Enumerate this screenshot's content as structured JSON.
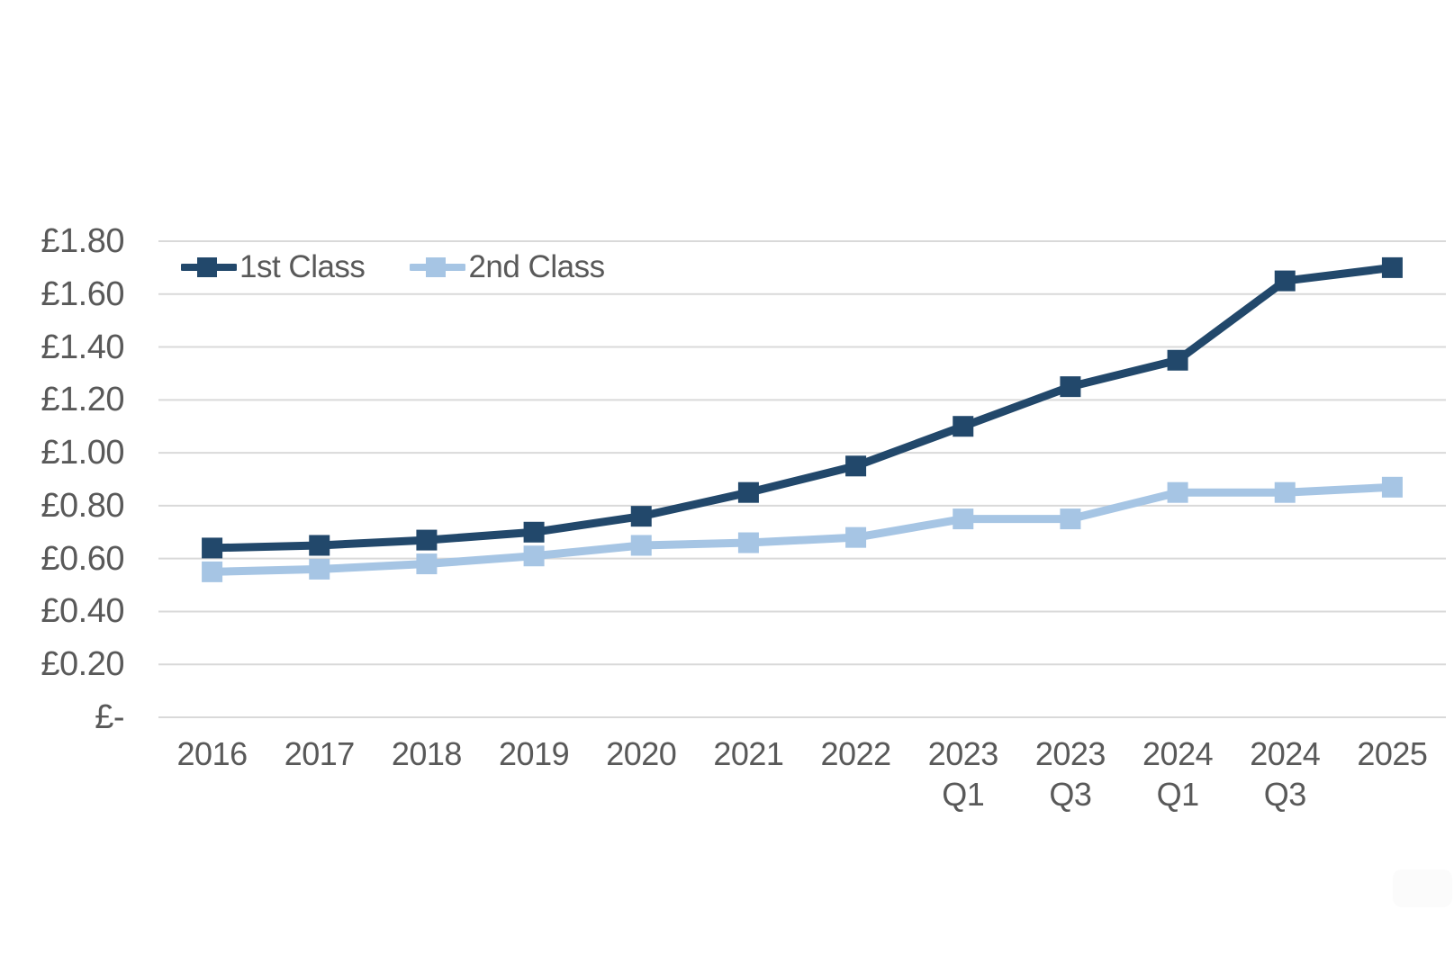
{
  "chart_data": {
    "type": "line",
    "title": "",
    "xlabel": "",
    "ylabel": "",
    "categories": [
      "2016",
      "2017",
      "2018",
      "2019",
      "2020",
      "2021",
      "2022",
      "2023 Q1",
      "2023 Q3",
      "2024 Q1",
      "2024 Q3",
      "2025"
    ],
    "series": [
      {
        "name": "1st Class",
        "color": "#22486B",
        "marker": "square",
        "values": [
          0.64,
          0.65,
          0.67,
          0.7,
          0.76,
          0.85,
          0.95,
          1.1,
          1.25,
          1.35,
          1.65,
          1.7
        ]
      },
      {
        "name": "2nd Class",
        "color": "#A6C5E4",
        "marker": "square",
        "values": [
          0.55,
          0.56,
          0.58,
          0.61,
          0.65,
          0.66,
          0.68,
          0.75,
          0.75,
          0.85,
          0.85,
          0.87
        ]
      }
    ],
    "ylim": [
      0,
      1.8
    ],
    "ytick_step": 0.2,
    "ytick_labels": [
      "£1.80",
      "£1.60",
      "£1.40",
      "£1.20",
      "£1.00",
      "£0.80",
      "£0.60",
      "£0.40",
      "£0.20",
      "£-"
    ],
    "grid": "horizontal",
    "gridline_color": "#D9D9D9",
    "axis_text_color": "#595959",
    "legend_position": "top-left-inside",
    "currency": "GBP"
  }
}
